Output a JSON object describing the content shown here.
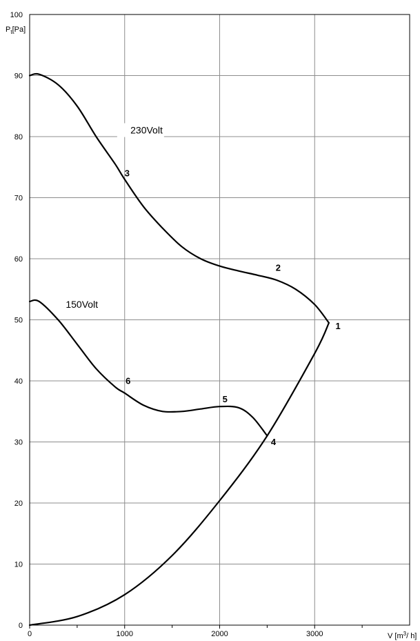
{
  "chart_data": {
    "type": "line",
    "xlabel_parts": [
      "V [m",
      "3",
      "/ h]"
    ],
    "ylabel_parts": [
      "P",
      "t",
      "[Pa]"
    ],
    "xlim": [
      0,
      4000
    ],
    "ylim": [
      0,
      100
    ],
    "grid": true,
    "x_major_ticks": [
      0,
      1000,
      2000,
      3000
    ],
    "x_minor_ticks": [
      500,
      1500,
      2500,
      3500
    ],
    "y_ticks": [
      0,
      10,
      20,
      30,
      40,
      50,
      60,
      70,
      80,
      90,
      100
    ],
    "series": [
      {
        "name": "230Volt",
        "x": [
          0,
          100,
          300,
          500,
          700,
          900,
          1000,
          1200,
          1400,
          1600,
          1800,
          2000,
          2200,
          2400,
          2600,
          2800,
          3000,
          3150
        ],
        "y": [
          90,
          90.2,
          88.5,
          85,
          80,
          75.5,
          73,
          68.5,
          65,
          62,
          60,
          58.8,
          58,
          57.3,
          56.5,
          55,
          52.5,
          49.5
        ]
      },
      {
        "name": "150Volt",
        "x": [
          0,
          100,
          300,
          500,
          700,
          900,
          1000,
          1200,
          1400,
          1600,
          1800,
          2000,
          2200,
          2350,
          2500
        ],
        "y": [
          53,
          53,
          50,
          46,
          42,
          39,
          38,
          36,
          35,
          35,
          35.4,
          35.8,
          35.6,
          34,
          31
        ]
      },
      {
        "name": "",
        "x": [
          0,
          500,
          1000,
          1500,
          2000,
          2500,
          3000,
          3150
        ],
        "y": [
          0,
          1.4,
          5,
          11.4,
          20.4,
          31,
          44.5,
          49.5
        ]
      }
    ],
    "annotations": [
      {
        "text": "230Volt",
        "x": 1400,
        "y": 80.5,
        "anchor": "end"
      },
      {
        "text": "150Volt",
        "x": 380,
        "y": 52,
        "anchor": "start"
      },
      {
        "text": "1",
        "x": 3220,
        "y": 48.5,
        "anchor": "start"
      },
      {
        "text": "2",
        "x": 2590,
        "y": 58,
        "anchor": "start"
      },
      {
        "text": "3",
        "x": 1000,
        "y": 73.5,
        "anchor": "start"
      },
      {
        "text": "4",
        "x": 2540,
        "y": 29.5,
        "anchor": "start"
      },
      {
        "text": "5",
        "x": 2030,
        "y": 36.5,
        "anchor": "start"
      },
      {
        "text": "6",
        "x": 1010,
        "y": 39.5,
        "anchor": "start"
      }
    ]
  }
}
